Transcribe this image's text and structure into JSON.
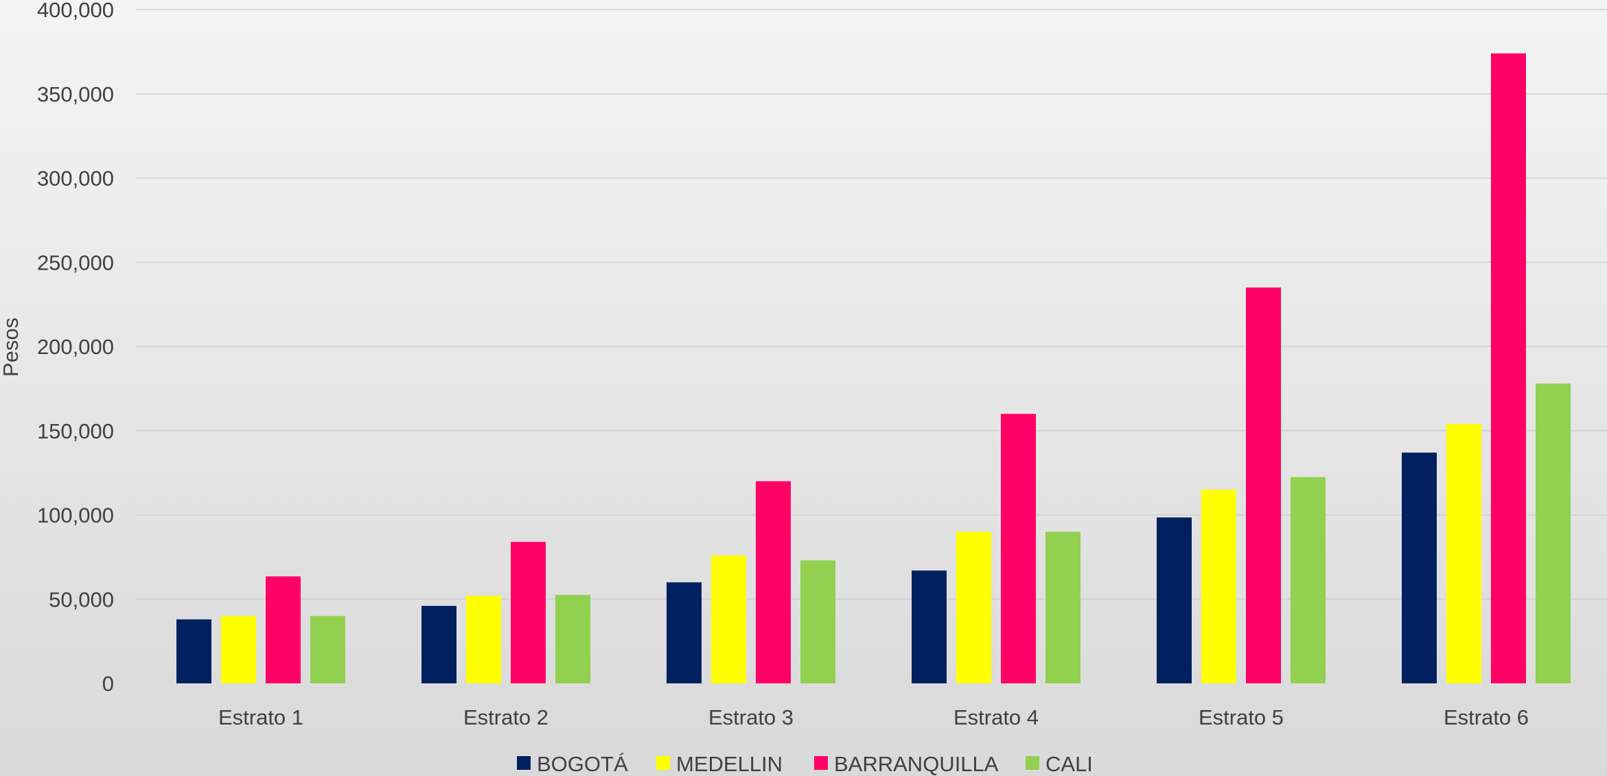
{
  "chart_data": {
    "type": "bar",
    "title": "",
    "xlabel": "",
    "ylabel": "Pesos",
    "ylim": [
      0,
      400000
    ],
    "y_ticks": [
      0,
      50000,
      100000,
      150000,
      200000,
      250000,
      300000,
      350000,
      400000
    ],
    "y_tick_labels": [
      "0",
      "50,000",
      "100,000",
      "150,000",
      "200,000",
      "250,000",
      "300,000",
      "350,000",
      "400,000"
    ],
    "grid": true,
    "legend_position": "bottom",
    "categories": [
      "Estrato 1",
      "Estrato 2",
      "Estrato 3",
      "Estrato 4",
      "Estrato 5",
      "Estrato 6"
    ],
    "series": [
      {
        "name": "BOGOTÁ",
        "color": "#002060",
        "values": [
          38000,
          46000,
          60000,
          67000,
          98500,
          137000
        ]
      },
      {
        "name": "MEDELLIN",
        "color": "#FFFF00",
        "values": [
          40000,
          52000,
          76000,
          90000,
          115000,
          154000
        ]
      },
      {
        "name": "BARRANQUILLA",
        "color": "#FF0066",
        "values": [
          63500,
          84000,
          120000,
          160000,
          235000,
          374000
        ]
      },
      {
        "name": "CALI",
        "color": "#92D050",
        "values": [
          40000,
          52500,
          73000,
          90000,
          122500,
          178000
        ]
      }
    ]
  }
}
